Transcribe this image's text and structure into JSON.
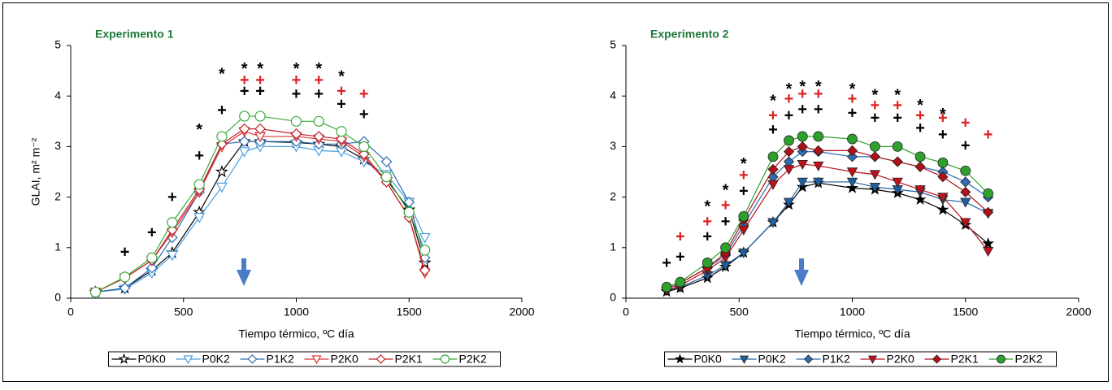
{
  "chart_data": [
    {
      "type": "line",
      "title": "Experimento 1",
      "x_label": "Tiempo térmico, ºC día",
      "y_label": "GLAI, m² m⁻²",
      "markers": "open",
      "x": [
        110,
        240,
        360,
        450,
        570,
        670,
        770,
        840,
        1000,
        1100,
        1200,
        1300,
        1400,
        1500,
        1570
      ],
      "series": [
        {
          "name": "P0K0",
          "color": "#000000",
          "marker": "star",
          "values": [
            0.12,
            0.2,
            0.55,
            0.9,
            1.7,
            2.5,
            3.1,
            3.1,
            3.08,
            3.05,
            3.0,
            2.75,
            2.35,
            1.75,
            0.7
          ]
        },
        {
          "name": "P0K2",
          "color": "#4a9fe0",
          "marker": "triangle-down",
          "values": [
            0.12,
            0.18,
            0.5,
            0.85,
            1.6,
            2.2,
            2.9,
            3.0,
            3.0,
            2.92,
            2.9,
            2.7,
            2.45,
            1.9,
            1.2
          ]
        },
        {
          "name": "P1K2",
          "color": "#2e6db4",
          "marker": "diamond",
          "values": [
            0.12,
            0.2,
            0.6,
            1.2,
            2.1,
            3.05,
            3.1,
            3.1,
            3.1,
            3.05,
            3.05,
            3.1,
            2.7,
            1.9,
            0.8
          ]
        },
        {
          "name": "P2K0",
          "color": "#e03030",
          "marker": "triangle-down",
          "values": [
            0.12,
            0.4,
            0.75,
            1.3,
            2.1,
            3.0,
            3.3,
            3.2,
            3.2,
            3.15,
            3.1,
            2.8,
            2.3,
            1.6,
            0.5
          ]
        },
        {
          "name": "P2K1",
          "color": "#c0202a",
          "marker": "diamond",
          "values": [
            0.12,
            0.4,
            0.75,
            1.35,
            2.15,
            3.05,
            3.35,
            3.35,
            3.25,
            3.2,
            3.15,
            2.85,
            2.3,
            1.6,
            0.55
          ]
        },
        {
          "name": "P2K2",
          "color": "#3aaa3a",
          "marker": "circle",
          "values": [
            0.12,
            0.42,
            0.8,
            1.5,
            2.25,
            3.2,
            3.6,
            3.6,
            3.5,
            3.5,
            3.3,
            3.0,
            2.4,
            1.7,
            0.95
          ]
        }
      ],
      "annotations": [
        {
          "text": "+",
          "color": "#000000",
          "x": 240,
          "y": 0.9
        },
        {
          "text": "+",
          "color": "#000000",
          "x": 360,
          "y": 1.28
        },
        {
          "text": "+",
          "color": "#000000",
          "x": 450,
          "y": 1.98
        },
        {
          "text": "+",
          "color": "#000000",
          "x": 570,
          "y": 2.8
        },
        {
          "text": "+",
          "color": "#000000",
          "x": 670,
          "y": 3.7
        },
        {
          "text": "+",
          "color": "#000000",
          "x": 770,
          "y": 4.08
        },
        {
          "text": "+",
          "color": "#000000",
          "x": 840,
          "y": 4.08
        },
        {
          "text": "+",
          "color": "#000000",
          "x": 1000,
          "y": 4.02
        },
        {
          "text": "+",
          "color": "#000000",
          "x": 1100,
          "y": 4.02
        },
        {
          "text": "+",
          "color": "#000000",
          "x": 1200,
          "y": 3.82
        },
        {
          "text": "+",
          "color": "#000000",
          "x": 1300,
          "y": 3.62
        },
        {
          "text": "*",
          "color": "#000000",
          "x": 570,
          "y": 3.4
        },
        {
          "text": "*",
          "color": "#000000",
          "x": 670,
          "y": 4.5
        },
        {
          "text": "*",
          "color": "#000000",
          "x": 770,
          "y": 4.6
        },
        {
          "text": "*",
          "color": "#000000",
          "x": 840,
          "y": 4.6
        },
        {
          "text": "*",
          "color": "#000000",
          "x": 1000,
          "y": 4.6
        },
        {
          "text": "*",
          "color": "#000000",
          "x": 1100,
          "y": 4.6
        },
        {
          "text": "*",
          "color": "#000000",
          "x": 1200,
          "y": 4.45
        },
        {
          "text": "+",
          "color": "#e02020",
          "x": 770,
          "y": 4.3
        },
        {
          "text": "+",
          "color": "#e02020",
          "x": 840,
          "y": 4.3
        },
        {
          "text": "+",
          "color": "#e02020",
          "x": 1000,
          "y": 4.3
        },
        {
          "text": "+",
          "color": "#e02020",
          "x": 1100,
          "y": 4.3
        },
        {
          "text": "+",
          "color": "#e02020",
          "x": 1200,
          "y": 4.08
        },
        {
          "text": "+",
          "color": "#e02020",
          "x": 1300,
          "y": 4.02
        }
      ],
      "xlim": [
        0,
        2000
      ],
      "xticks": [
        0,
        500,
        1000,
        1500,
        2000
      ],
      "ylim": [
        0,
        5
      ],
      "yticks": [
        0,
        1,
        2,
        3,
        4,
        5
      ]
    },
    {
      "type": "line",
      "title": "Experimento 2",
      "x_label": "Tiempo térmico, ºC día",
      "markers": "filled",
      "x": [
        180,
        240,
        360,
        440,
        520,
        650,
        720,
        780,
        850,
        1000,
        1100,
        1200,
        1300,
        1400,
        1500,
        1600
      ],
      "series": [
        {
          "name": "P0K0",
          "color": "#000000",
          "marker": "star",
          "values": [
            0.13,
            0.2,
            0.4,
            0.62,
            0.9,
            1.5,
            1.85,
            2.2,
            2.28,
            2.18,
            2.15,
            2.08,
            1.95,
            1.75,
            1.45,
            1.08
          ]
        },
        {
          "name": "P0K2",
          "color": "#1f5f9f",
          "marker": "triangle-down",
          "values": [
            0.15,
            0.22,
            0.45,
            0.65,
            0.9,
            1.5,
            1.9,
            2.3,
            2.3,
            2.3,
            2.2,
            2.15,
            2.1,
            1.95,
            1.9,
            1.68
          ]
        },
        {
          "name": "P1K2",
          "color": "#2e6db4",
          "marker": "diamond",
          "values": [
            0.18,
            0.3,
            0.6,
            0.85,
            1.45,
            2.4,
            2.7,
            2.9,
            2.9,
            2.8,
            2.8,
            2.7,
            2.6,
            2.5,
            2.3,
            2.0
          ]
        },
        {
          "name": "P2K0",
          "color": "#c0101a",
          "marker": "triangle-down",
          "values": [
            0.15,
            0.25,
            0.55,
            0.8,
            1.35,
            2.25,
            2.55,
            2.65,
            2.62,
            2.5,
            2.45,
            2.3,
            2.15,
            2.0,
            1.5,
            0.93
          ]
        },
        {
          "name": "P2K1",
          "color": "#b01018",
          "marker": "diamond",
          "values": [
            0.18,
            0.3,
            0.6,
            0.9,
            1.55,
            2.55,
            2.9,
            3.0,
            2.92,
            2.92,
            2.8,
            2.7,
            2.6,
            2.4,
            2.1,
            1.7
          ]
        },
        {
          "name": "P2K2",
          "color": "#2ea02e",
          "marker": "circle",
          "values": [
            0.22,
            0.32,
            0.7,
            1.0,
            1.62,
            2.8,
            3.12,
            3.2,
            3.2,
            3.15,
            3.0,
            3.0,
            2.8,
            2.68,
            2.52,
            2.07
          ]
        }
      ],
      "annotations": [
        {
          "text": "+",
          "color": "#000000",
          "x": 180,
          "y": 0.68
        },
        {
          "text": "+",
          "color": "#000000",
          "x": 240,
          "y": 0.8
        },
        {
          "text": "+",
          "color": "#000000",
          "x": 360,
          "y": 1.2
        },
        {
          "text": "+",
          "color": "#000000",
          "x": 440,
          "y": 1.5
        },
        {
          "text": "+",
          "color": "#000000",
          "x": 520,
          "y": 2.1
        },
        {
          "text": "+",
          "color": "#000000",
          "x": 650,
          "y": 3.32
        },
        {
          "text": "+",
          "color": "#000000",
          "x": 720,
          "y": 3.6
        },
        {
          "text": "+",
          "color": "#000000",
          "x": 780,
          "y": 3.72
        },
        {
          "text": "+",
          "color": "#000000",
          "x": 850,
          "y": 3.72
        },
        {
          "text": "+",
          "color": "#000000",
          "x": 1000,
          "y": 3.65
        },
        {
          "text": "+",
          "color": "#000000",
          "x": 1100,
          "y": 3.55
        },
        {
          "text": "+",
          "color": "#000000",
          "x": 1200,
          "y": 3.55
        },
        {
          "text": "+",
          "color": "#000000",
          "x": 1300,
          "y": 3.35
        },
        {
          "text": "+",
          "color": "#000000",
          "x": 1400,
          "y": 3.22
        },
        {
          "text": "+",
          "color": "#000000",
          "x": 1500,
          "y": 3.0
        },
        {
          "text": "+",
          "color": "#e02020",
          "x": 240,
          "y": 1.2
        },
        {
          "text": "+",
          "color": "#e02020",
          "x": 360,
          "y": 1.5
        },
        {
          "text": "+",
          "color": "#e02020",
          "x": 440,
          "y": 1.82
        },
        {
          "text": "+",
          "color": "#e02020",
          "x": 520,
          "y": 2.42
        },
        {
          "text": "+",
          "color": "#e02020",
          "x": 650,
          "y": 3.6
        },
        {
          "text": "+",
          "color": "#e02020",
          "x": 720,
          "y": 3.93
        },
        {
          "text": "+",
          "color": "#e02020",
          "x": 780,
          "y": 4.02
        },
        {
          "text": "+",
          "color": "#e02020",
          "x": 850,
          "y": 4.02
        },
        {
          "text": "+",
          "color": "#e02020",
          "x": 1000,
          "y": 3.93
        },
        {
          "text": "+",
          "color": "#e02020",
          "x": 1100,
          "y": 3.8
        },
        {
          "text": "+",
          "color": "#e02020",
          "x": 1200,
          "y": 3.8
        },
        {
          "text": "+",
          "color": "#e02020",
          "x": 1300,
          "y": 3.6
        },
        {
          "text": "+",
          "color": "#e02020",
          "x": 1400,
          "y": 3.55
        },
        {
          "text": "+",
          "color": "#e02020",
          "x": 1500,
          "y": 3.45
        },
        {
          "text": "+",
          "color": "#e02020",
          "x": 1600,
          "y": 3.22
        },
        {
          "text": "*",
          "color": "#000000",
          "x": 360,
          "y": 1.88
        },
        {
          "text": "*",
          "color": "#000000",
          "x": 440,
          "y": 2.2
        },
        {
          "text": "*",
          "color": "#000000",
          "x": 520,
          "y": 2.72
        },
        {
          "text": "*",
          "color": "#000000",
          "x": 650,
          "y": 3.97
        },
        {
          "text": "*",
          "color": "#000000",
          "x": 720,
          "y": 4.2
        },
        {
          "text": "*",
          "color": "#000000",
          "x": 780,
          "y": 4.25
        },
        {
          "text": "*",
          "color": "#000000",
          "x": 850,
          "y": 4.25
        },
        {
          "text": "*",
          "color": "#000000",
          "x": 1000,
          "y": 4.2
        },
        {
          "text": "*",
          "color": "#000000",
          "x": 1100,
          "y": 4.08
        },
        {
          "text": "*",
          "color": "#000000",
          "x": 1200,
          "y": 4.08
        },
        {
          "text": "*",
          "color": "#000000",
          "x": 1300,
          "y": 3.88
        },
        {
          "text": "*",
          "color": "#000000",
          "x": 1400,
          "y": 3.7
        }
      ],
      "xlim": [
        0,
        2000
      ],
      "xticks": [
        0,
        500,
        1000,
        1500,
        2000
      ],
      "ylim": [
        0,
        5
      ],
      "yticks": [
        0,
        1,
        2,
        3,
        4,
        5
      ]
    }
  ]
}
